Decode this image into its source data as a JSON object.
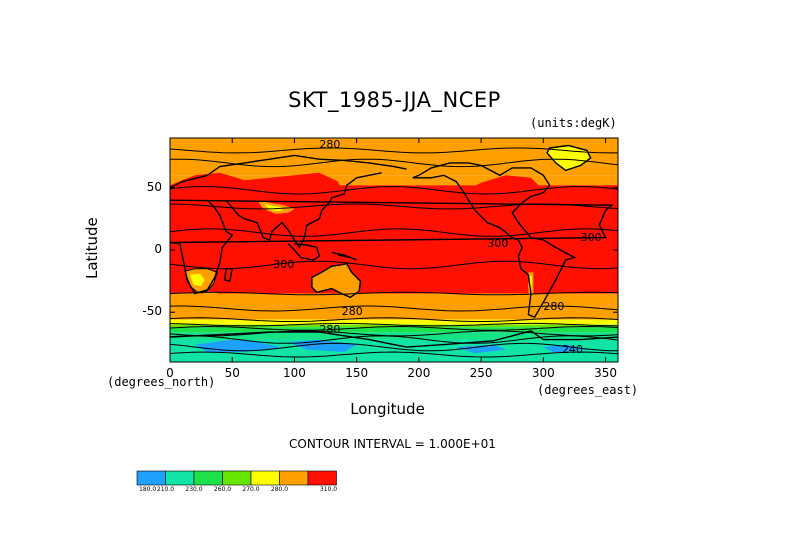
{
  "chart_data": {
    "type": "heatmap",
    "title": "SKT_1985-JJA_NCEP",
    "units": "(units:degK)",
    "xlabel": "Longitude",
    "ylabel": "Latitude",
    "x_units": "(degrees_east)",
    "y_units": "(degrees_north)",
    "xlim": [
      0,
      360
    ],
    "ylim": [
      -90,
      90
    ],
    "x_ticks": [
      "0",
      "50",
      "100",
      "150",
      "200",
      "250",
      "300",
      "350"
    ],
    "x_tick_values": [
      0,
      50,
      100,
      150,
      200,
      250,
      300,
      350
    ],
    "y_ticks": [
      "50",
      "0",
      "-50"
    ],
    "y_tick_values": [
      50,
      0,
      -50
    ],
    "contour_interval_text": "CONTOUR INTERVAL = 1.000E+01",
    "contour_labels": [
      "280",
      "300",
      "300",
      "300",
      "280",
      "280",
      "280",
      "240"
    ],
    "colorbar": {
      "levels": [
        "180.0",
        "210.0",
        "230.0",
        "260.0",
        "270.0",
        "280.0",
        "310.0"
      ],
      "colors": [
        "#1ea0ff",
        "#12e3a6",
        "#1ee14b",
        "#66e600",
        "#ffff00",
        "#ffa000",
        "#ff1000"
      ]
    }
  }
}
